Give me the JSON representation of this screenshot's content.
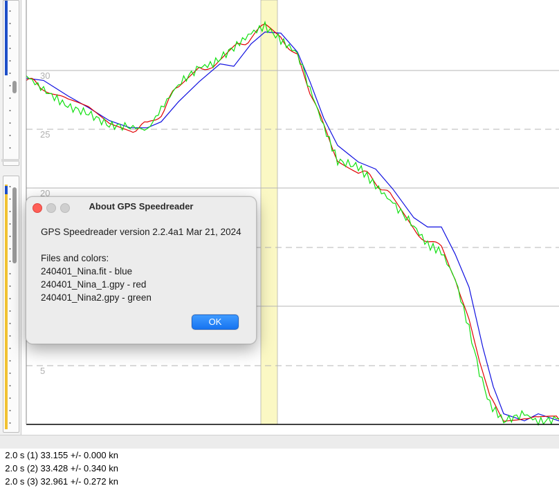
{
  "chart": {
    "y_ticks": [
      "30",
      "25",
      "20",
      "5"
    ],
    "colors": {
      "file1": "#1010e0",
      "file2": "#e00000",
      "file3": "#10e010",
      "highlight": "#fbf8c4"
    }
  },
  "chart_data": {
    "type": "line",
    "ylim": [
      0,
      36
    ],
    "xlim": [
      0,
      770
    ],
    "grid": true,
    "series": [
      {
        "name": "240401_Nina.fit",
        "color": "blue",
        "points": [
          [
            0,
            29.3
          ],
          [
            25,
            29.1
          ],
          [
            60,
            27.8
          ],
          [
            90,
            26.8
          ],
          [
            120,
            25.7
          ],
          [
            150,
            25.1
          ],
          [
            175,
            25.1
          ],
          [
            195,
            25.6
          ],
          [
            220,
            27.3
          ],
          [
            250,
            29
          ],
          [
            280,
            30.5
          ],
          [
            300,
            30.3
          ],
          [
            325,
            32.2
          ],
          [
            345,
            33.2
          ],
          [
            368,
            33.1
          ],
          [
            392,
            31.5
          ],
          [
            410,
            29
          ],
          [
            430,
            25.9
          ],
          [
            450,
            23.6
          ],
          [
            480,
            22.2
          ],
          [
            505,
            21.6
          ],
          [
            530,
            19.9
          ],
          [
            560,
            17.5
          ],
          [
            580,
            16.7
          ],
          [
            600,
            16.7
          ],
          [
            620,
            14.4
          ],
          [
            640,
            11.6
          ],
          [
            660,
            6.5
          ],
          [
            675,
            3.2
          ],
          [
            690,
            0.9
          ],
          [
            720,
            0.3
          ],
          [
            740,
            0.9
          ],
          [
            770,
            0.3
          ]
        ]
      },
      {
        "name": "240401_Nina_1.gpy",
        "color": "red",
        "points": [
          [
            0,
            29.1
          ],
          [
            25,
            28.6
          ],
          [
            60,
            27.2
          ],
          [
            90,
            26.6
          ],
          [
            120,
            25.4
          ],
          [
            150,
            25
          ],
          [
            175,
            25.3
          ],
          [
            195,
            26.4
          ],
          [
            220,
            28.6
          ],
          [
            250,
            30.5
          ],
          [
            270,
            30.1
          ],
          [
            300,
            31.7
          ],
          [
            325,
            32.8
          ],
          [
            345,
            33.6
          ],
          [
            368,
            32.9
          ],
          [
            392,
            31.2
          ],
          [
            410,
            28.1
          ],
          [
            430,
            25.1
          ],
          [
            450,
            22.6
          ],
          [
            480,
            21.5
          ],
          [
            505,
            20.6
          ],
          [
            530,
            19
          ],
          [
            560,
            16.6
          ],
          [
            580,
            15.6
          ],
          [
            600,
            14.8
          ],
          [
            620,
            12.6
          ],
          [
            640,
            8.6
          ],
          [
            655,
            5
          ],
          [
            670,
            2.1
          ],
          [
            690,
            0.6
          ],
          [
            720,
            0.8
          ],
          [
            740,
            0.3
          ],
          [
            770,
            0.4
          ]
        ]
      },
      {
        "name": "240401_Nina2.gpy",
        "color": "green",
        "points": [
          [
            0,
            29.5
          ],
          [
            25,
            28.3
          ],
          [
            60,
            26.9
          ],
          [
            90,
            26.3
          ],
          [
            120,
            25.3
          ],
          [
            150,
            25.2
          ],
          [
            175,
            24.9
          ],
          [
            195,
            26.7
          ],
          [
            220,
            28.8
          ],
          [
            250,
            30.2
          ],
          [
            270,
            30.5
          ],
          [
            300,
            31.9
          ],
          [
            325,
            33.1
          ],
          [
            345,
            33.7
          ],
          [
            368,
            32.5
          ],
          [
            392,
            31.4
          ],
          [
            410,
            28.4
          ],
          [
            430,
            25.2
          ],
          [
            450,
            22.3
          ],
          [
            480,
            21.8
          ],
          [
            505,
            20.2
          ],
          [
            530,
            18.7
          ],
          [
            560,
            16.8
          ],
          [
            580,
            15.2
          ],
          [
            600,
            14.6
          ],
          [
            620,
            12.3
          ],
          [
            640,
            8.1
          ],
          [
            655,
            4.4
          ],
          [
            670,
            1.7
          ],
          [
            690,
            0.3
          ],
          [
            720,
            0.9
          ],
          [
            740,
            0.2
          ],
          [
            770,
            0.5
          ]
        ]
      }
    ]
  },
  "status": {
    "s1": "2.0 s (1) 33.155 +/- 0.000 kn",
    "s2": "2.0 s (2) 33.428 +/- 0.340 kn",
    "s3": "2.0 s (3) 32.961 +/- 0.272 kn"
  },
  "dialog": {
    "title": "About GPS Speedreader",
    "version": "GPS Speedreader version 2.2.4a1 Mar 21, 2024",
    "files_heading": "Files and colors:",
    "files": [
      "240401_Nina.fit - blue",
      "240401_Nina_1.gpy - red",
      "240401_Nina2.gpy - green"
    ],
    "ok_label": "OK"
  }
}
